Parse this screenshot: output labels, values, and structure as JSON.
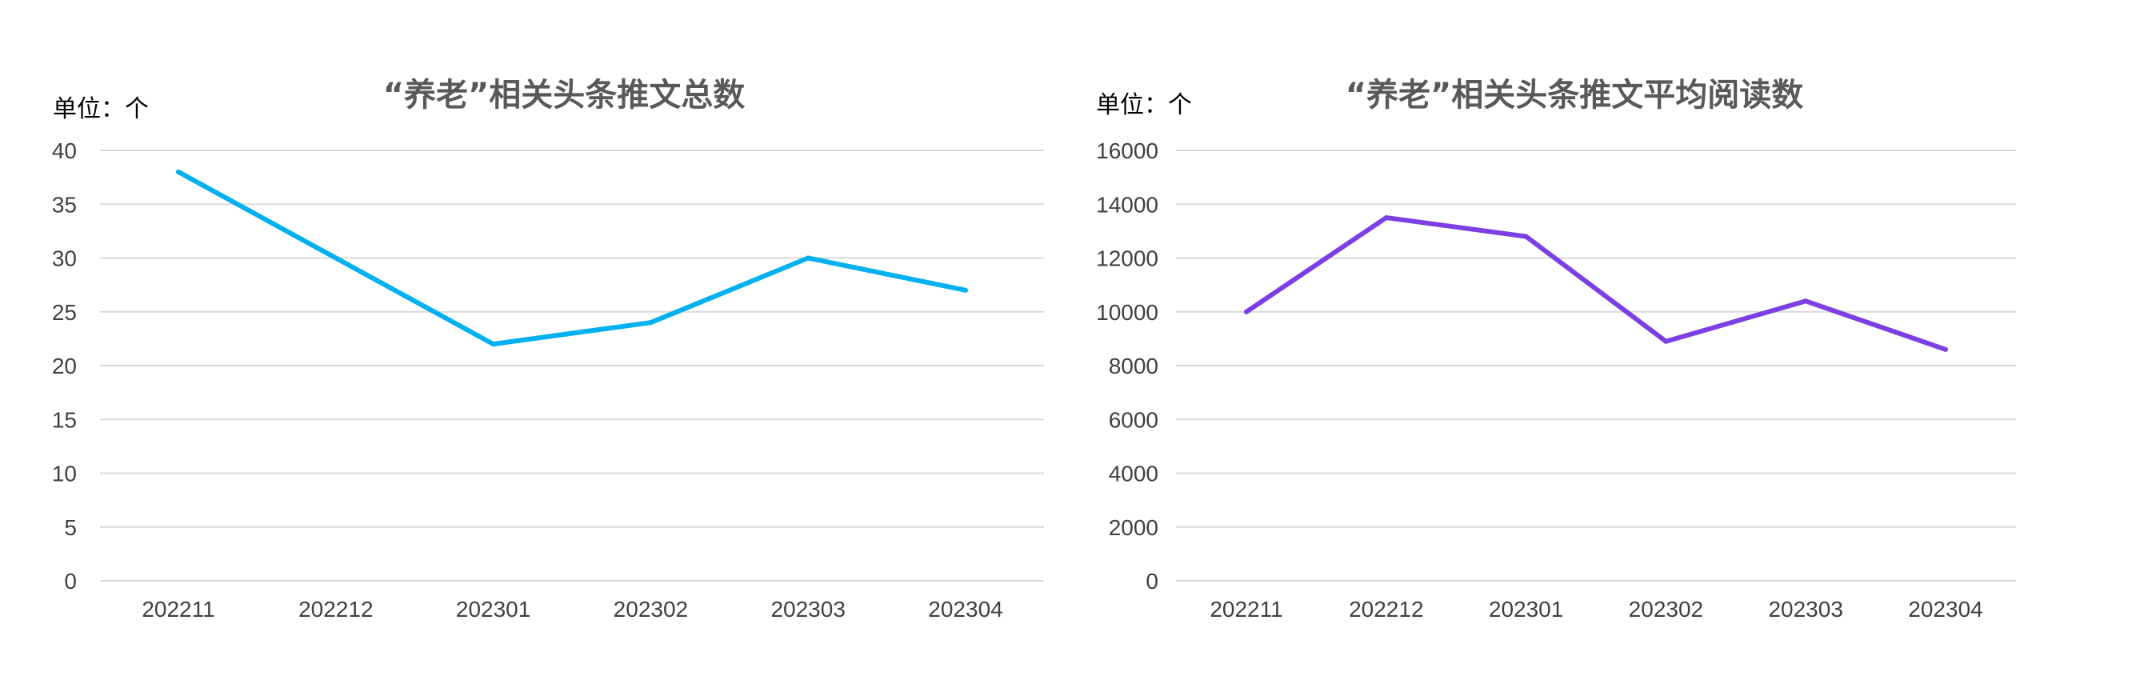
{
  "chart_data": [
    {
      "type": "line",
      "title": "“养老”相关头条推文总数",
      "unit_label": "单位：个",
      "categories": [
        "202211",
        "202212",
        "202301",
        "202302",
        "202303",
        "202304"
      ],
      "series": [
        {
          "values": [
            38,
            30,
            22,
            24,
            30,
            27
          ],
          "color": "#00b0f0"
        }
      ],
      "ylim": [
        0,
        40
      ],
      "yticks": [
        "0",
        "5",
        "10",
        "15",
        "20",
        "25",
        "30",
        "35",
        "40"
      ],
      "grid": true,
      "legend": "none"
    },
    {
      "type": "line",
      "title": "“养老”相关头条推文平均阅读数",
      "unit_label": "单位：个",
      "categories": [
        "202211",
        "202212",
        "202301",
        "202302",
        "202303",
        "202304"
      ],
      "series": [
        {
          "values": [
            10000,
            13500,
            12800,
            8900,
            10400,
            8600
          ],
          "color": "#7b3fe4"
        }
      ],
      "ylim": [
        0,
        16000
      ],
      "yticks": [
        "0",
        "2000",
        "4000",
        "6000",
        "8000",
        "10000",
        "12000",
        "14000",
        "16000"
      ],
      "grid": true,
      "legend": "none"
    }
  ]
}
